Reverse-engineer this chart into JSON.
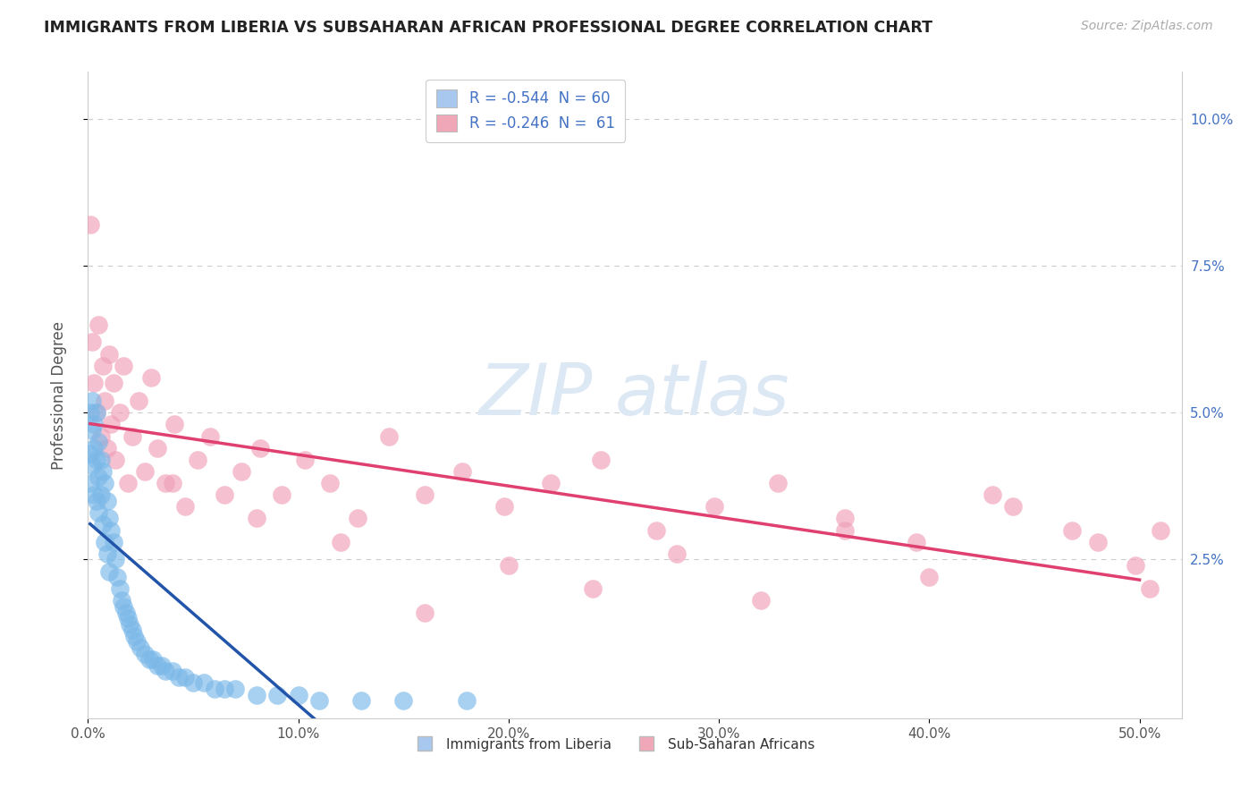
{
  "title": "IMMIGRANTS FROM LIBERIA VS SUBSAHARAN AFRICAN PROFESSIONAL DEGREE CORRELATION CHART",
  "source": "Source: ZipAtlas.com",
  "ylabel": "Professional Degree",
  "xlim": [
    0.0,
    0.52
  ],
  "ylim": [
    -0.002,
    0.108
  ],
  "xtick_labels": [
    "0.0%",
    "10.0%",
    "20.0%",
    "30.0%",
    "40.0%",
    "50.0%"
  ],
  "xtick_values": [
    0.0,
    0.1,
    0.2,
    0.3,
    0.4,
    0.5
  ],
  "ytick_labels": [
    "2.5%",
    "5.0%",
    "7.5%",
    "10.0%"
  ],
  "ytick_values": [
    0.025,
    0.05,
    0.075,
    0.1
  ],
  "legend_r_items": [
    {
      "label": "R = -0.544  N = 60",
      "color": "#a8c8f0"
    },
    {
      "label": "R = -0.246  N =  61",
      "color": "#f0a8b8"
    }
  ],
  "liberia_color": "#7ab8e8",
  "liberia_edge_color": "#7ab8e8",
  "liberia_line_color": "#2255aa",
  "subsaharan_color": "#f0a0b8",
  "subsaharan_edge_color": "#f0a0b8",
  "subsaharan_line_color": "#e04070",
  "background_color": "#ffffff",
  "grid_color": "#cccccc",
  "liberia_x": [
    0.001,
    0.001,
    0.001,
    0.002,
    0.002,
    0.002,
    0.003,
    0.003,
    0.003,
    0.004,
    0.004,
    0.004,
    0.005,
    0.005,
    0.005,
    0.006,
    0.006,
    0.007,
    0.007,
    0.008,
    0.008,
    0.009,
    0.009,
    0.01,
    0.01,
    0.011,
    0.012,
    0.013,
    0.014,
    0.015,
    0.016,
    0.017,
    0.018,
    0.019,
    0.02,
    0.021,
    0.022,
    0.023,
    0.025,
    0.027,
    0.029,
    0.031,
    0.033,
    0.035,
    0.037,
    0.04,
    0.043,
    0.046,
    0.05,
    0.055,
    0.06,
    0.065,
    0.07,
    0.08,
    0.09,
    0.1,
    0.11,
    0.13,
    0.15,
    0.18
  ],
  "liberia_y": [
    0.05,
    0.043,
    0.038,
    0.052,
    0.047,
    0.041,
    0.048,
    0.044,
    0.036,
    0.05,
    0.042,
    0.035,
    0.045,
    0.039,
    0.033,
    0.042,
    0.036,
    0.04,
    0.031,
    0.038,
    0.028,
    0.035,
    0.026,
    0.032,
    0.023,
    0.03,
    0.028,
    0.025,
    0.022,
    0.02,
    0.018,
    0.017,
    0.016,
    0.015,
    0.014,
    0.013,
    0.012,
    0.011,
    0.01,
    0.009,
    0.008,
    0.008,
    0.007,
    0.007,
    0.006,
    0.006,
    0.005,
    0.005,
    0.004,
    0.004,
    0.003,
    0.003,
    0.003,
    0.002,
    0.002,
    0.002,
    0.001,
    0.001,
    0.001,
    0.001
  ],
  "subsaharan_x": [
    0.001,
    0.002,
    0.003,
    0.004,
    0.005,
    0.006,
    0.007,
    0.008,
    0.009,
    0.01,
    0.011,
    0.012,
    0.013,
    0.015,
    0.017,
    0.019,
    0.021,
    0.024,
    0.027,
    0.03,
    0.033,
    0.037,
    0.041,
    0.046,
    0.052,
    0.058,
    0.065,
    0.073,
    0.082,
    0.092,
    0.103,
    0.115,
    0.128,
    0.143,
    0.16,
    0.178,
    0.198,
    0.22,
    0.244,
    0.27,
    0.298,
    0.328,
    0.36,
    0.394,
    0.43,
    0.468,
    0.498,
    0.505,
    0.51,
    0.48,
    0.44,
    0.4,
    0.36,
    0.32,
    0.28,
    0.24,
    0.2,
    0.16,
    0.12,
    0.08,
    0.04
  ],
  "subsaharan_y": [
    0.082,
    0.062,
    0.055,
    0.05,
    0.065,
    0.046,
    0.058,
    0.052,
    0.044,
    0.06,
    0.048,
    0.055,
    0.042,
    0.05,
    0.058,
    0.038,
    0.046,
    0.052,
    0.04,
    0.056,
    0.044,
    0.038,
    0.048,
    0.034,
    0.042,
    0.046,
    0.036,
    0.04,
    0.044,
    0.036,
    0.042,
    0.038,
    0.032,
    0.046,
    0.036,
    0.04,
    0.034,
    0.038,
    0.042,
    0.03,
    0.034,
    0.038,
    0.032,
    0.028,
    0.036,
    0.03,
    0.024,
    0.02,
    0.03,
    0.028,
    0.034,
    0.022,
    0.03,
    0.018,
    0.026,
    0.02,
    0.024,
    0.016,
    0.028,
    0.032,
    0.038
  ]
}
